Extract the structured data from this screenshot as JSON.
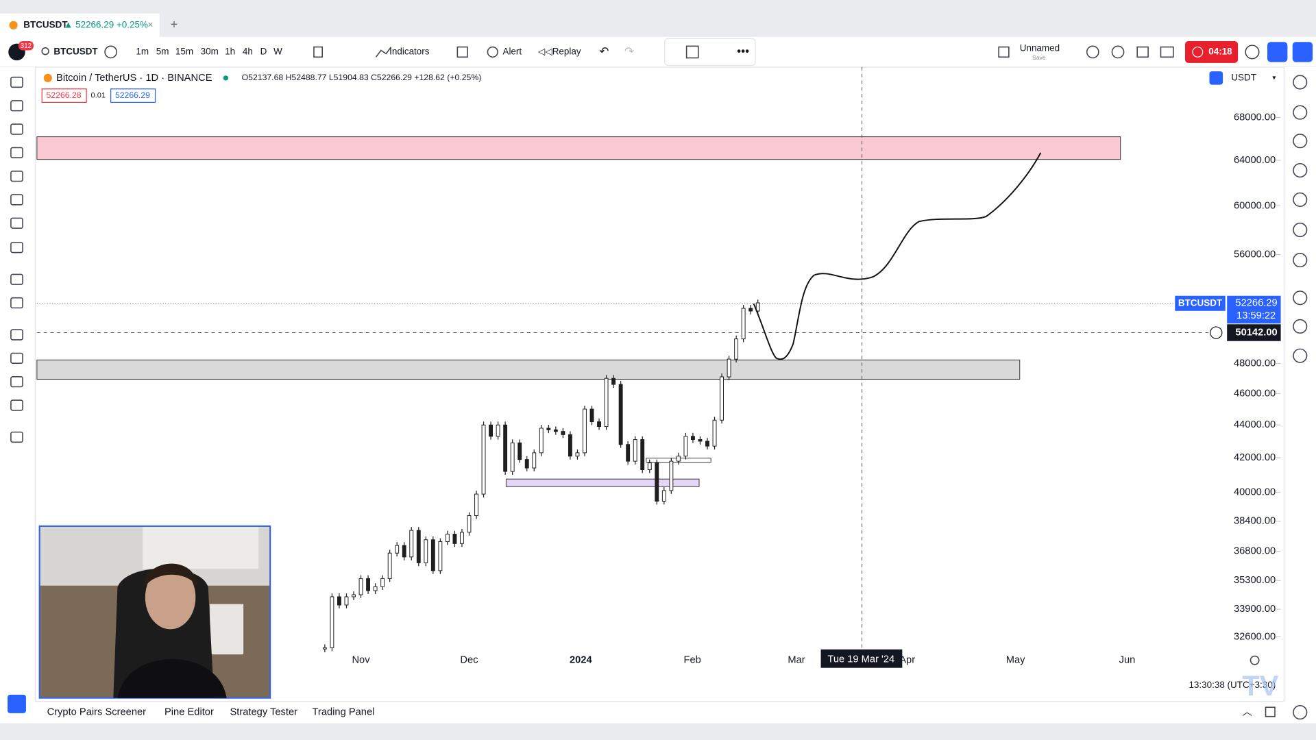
{
  "tab": {
    "title": "BTCUSDT",
    "change": "▲ 52266.29 +0.25%"
  },
  "toolbar": {
    "symbol": "BTCUSDT",
    "badge": "312",
    "intervals": [
      "1m",
      "5m",
      "15m",
      "30m",
      "1h",
      "4h",
      "D",
      "W"
    ],
    "indicators": "Indicators",
    "alert": "Alert",
    "replay": "Replay",
    "layout_name": "Unnamed",
    "save": "Save",
    "record": "04:18"
  },
  "legend": {
    "title": "Bitcoin / TetherUS · 1D · BINANCE",
    "ohlc": "O52137.68 H52488.77 L51904.83 C52266.29 +128.62 (+0.25%)",
    "bid": "52266.28",
    "spread": "0.01",
    "ask": "52266.29"
  },
  "price_axis": {
    "currency": "USDT",
    "log": true,
    "ticks": [
      {
        "value": 68000,
        "label": "68000.00"
      },
      {
        "value": 64000,
        "label": "64000.00"
      },
      {
        "value": 60000,
        "label": "60000.00"
      },
      {
        "value": 56000,
        "label": "56000.00"
      },
      {
        "value": 48000,
        "label": "48000.00"
      },
      {
        "value": 46000,
        "label": "46000.00"
      },
      {
        "value": 44000,
        "label": "44000.00"
      },
      {
        "value": 42000,
        "label": "42000.00"
      },
      {
        "value": 40000,
        "label": "40000.00"
      },
      {
        "value": 38400,
        "label": "38400.00"
      },
      {
        "value": 36800,
        "label": "36800.00"
      },
      {
        "value": 35300,
        "label": "35300.00"
      },
      {
        "value": 33900,
        "label": "33900.00"
      },
      {
        "value": 32600,
        "label": "32600.00"
      }
    ],
    "symbol": "BTCUSDT",
    "last_price": {
      "value": 52266.29,
      "label": "52266.29"
    },
    "countdown": "13:59:22",
    "crosshair": {
      "value": 50142,
      "label": "50142.00"
    }
  },
  "time_axis": {
    "labels": [
      "Nov",
      "Dec",
      "2024",
      "Feb",
      "Mar",
      "Apr",
      "May",
      "Jun"
    ],
    "crosshair": "Tue 19 Mar '24",
    "clock": "13:30:38 (UTC+3:30)"
  },
  "candles": {
    "closes": [
      32100,
      34500,
      34100,
      34500,
      34600,
      35400,
      34800,
      35000,
      35400,
      36700,
      37100,
      36500,
      37900,
      36200,
      37400,
      35800,
      37300,
      37700,
      37200,
      37800,
      38700,
      39900,
      44000,
      43300,
      44000,
      41200,
      42900,
      41900,
      41400,
      42300,
      43800,
      43700,
      43600,
      43400,
      42100,
      42300,
      45000,
      44200,
      43900,
      47000,
      46600,
      42800,
      41800,
      43100,
      41300,
      41700,
      39500,
      40100,
      41800,
      42100,
      43300,
      43100,
      43000,
      42700,
      44300,
      47100,
      48300,
      49700,
      51900,
      51700,
      52300
    ],
    "color": "#1e1e1e"
  },
  "bottom_tabs": [
    "Crypto Pairs Screener",
    "Pine Editor",
    "Strategy Tester",
    "Trading Panel"
  ]
}
